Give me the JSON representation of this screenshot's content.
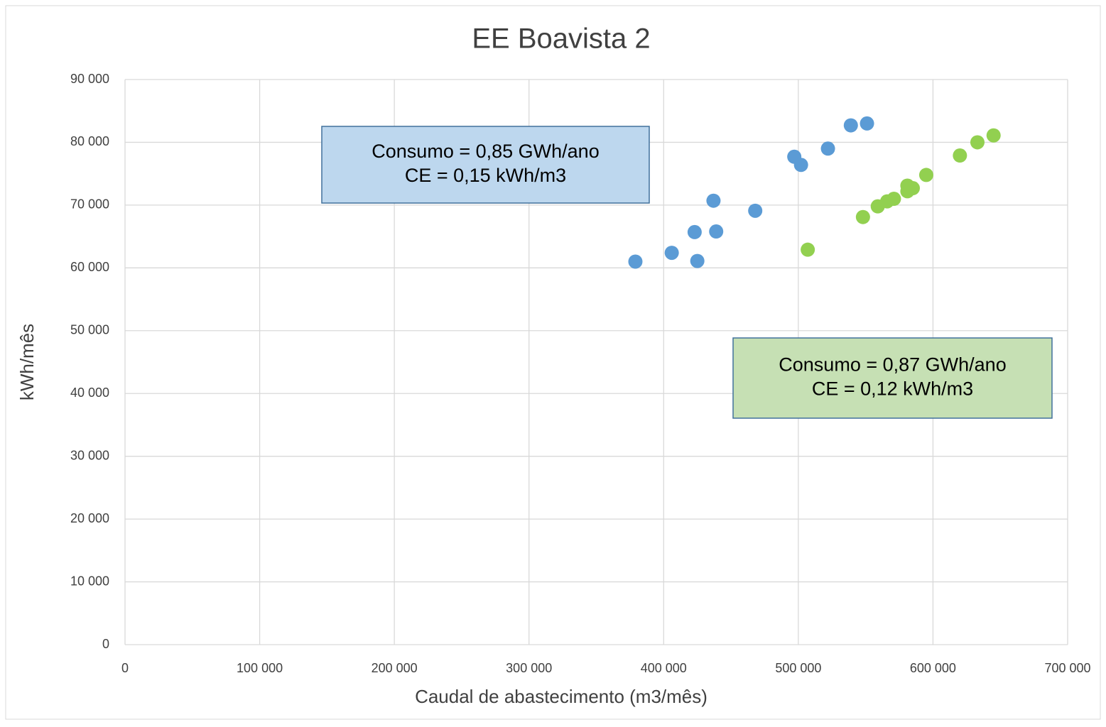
{
  "chart_data": {
    "type": "scatter",
    "title": "EE Boavista 2",
    "x_label": "Caudal de abastecimento (m3/mês)",
    "y_label": "kWh/mês",
    "xlim": [
      0,
      700000
    ],
    "ylim": [
      0,
      90000
    ],
    "xticks": [
      0,
      {
        "value": 100000,
        "label": "100 000"
      },
      {
        "value": 200000,
        "label": "200 000"
      },
      {
        "value": 300000,
        "label": "300 000"
      },
      {
        "value": 400000,
        "label": "400 000"
      },
      {
        "value": 500000,
        "label": "500 000"
      },
      {
        "value": 600000,
        "label": "600 000"
      },
      {
        "value": 700000,
        "label": "700 000"
      }
    ],
    "yticks": [
      0,
      {
        "value": 10000,
        "label": "10 000"
      },
      {
        "value": 20000,
        "label": "20 000"
      },
      {
        "value": 30000,
        "label": "30 000"
      },
      {
        "value": 40000,
        "label": "40 000"
      },
      {
        "value": 50000,
        "label": "50 000"
      },
      {
        "value": 60000,
        "label": "60 000"
      },
      {
        "value": 70000,
        "label": "70 000"
      },
      {
        "value": 80000,
        "label": "80 000"
      },
      {
        "value": 90000,
        "label": "90 000"
      }
    ],
    "grid": true,
    "series": [
      {
        "color": "#5b9bd5",
        "x": [
          379000,
          406000,
          423000,
          425000,
          437000,
          439000,
          468000,
          497000,
          502000,
          522000,
          539000,
          551000
        ],
        "values": [
          61000,
          62400,
          65700,
          61100,
          70700,
          65800,
          69100,
          77700,
          76400,
          79000,
          82700,
          83000
        ]
      },
      {
        "color": "#92d050",
        "x": [
          507000,
          548000,
          559000,
          566000,
          571000,
          581000,
          581000,
          585000,
          595000,
          620000,
          633000,
          645000
        ],
        "values": [
          62900,
          68100,
          69800,
          70600,
          71000,
          73100,
          72200,
          72700,
          74800,
          77900,
          80000,
          81100
        ]
      }
    ],
    "annotations": [
      {
        "lines": [
          "Consumo = 0,85 GWh/ano",
          "CE = 0,15 kWh/m3"
        ],
        "fill": "#bdd7ee",
        "border": "#41719c"
      },
      {
        "lines": [
          "Consumo = 0,87 GWh/ano",
          "CE = 0,12 kWh/m3"
        ],
        "fill": "#c6e0b4",
        "border": "#41719c"
      }
    ]
  }
}
